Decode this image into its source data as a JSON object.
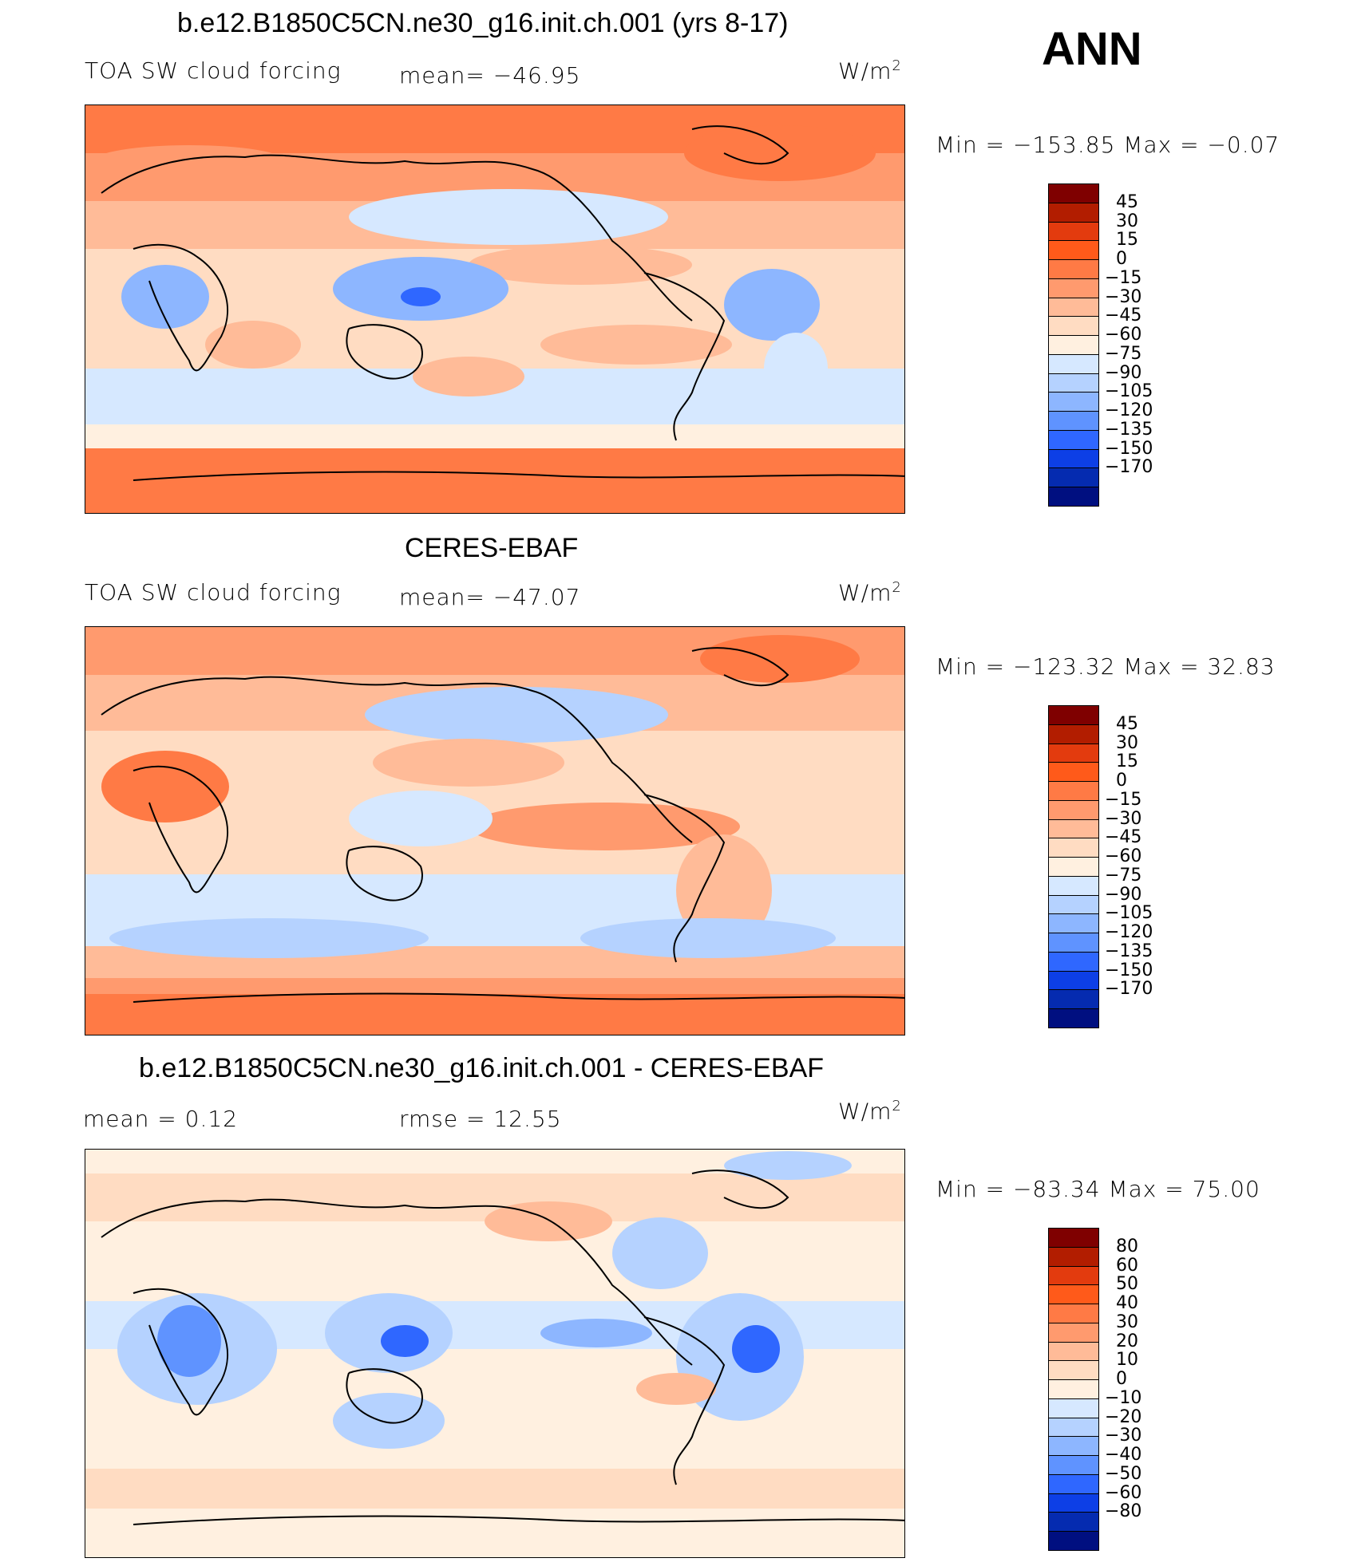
{
  "season": "ANN",
  "panels": [
    {
      "title": "b.e12.B1850C5CN.ne30_g16.init.ch.001 (yrs 8-17)",
      "variable": "TOA SW cloud forcing",
      "stat1": "mean=  −46.95",
      "stat2": "",
      "units": "W/m",
      "units_sup": "2",
      "minmax": "Min  =  −153.85  Max  =    −0.07",
      "levels": [
        "45",
        "30",
        "15",
        "0",
        "−15",
        "−30",
        "−45",
        "−60",
        "−75",
        "−90",
        "−105",
        "−120",
        "−135",
        "−150",
        "−170"
      ],
      "colors": [
        "#7f0000",
        "#b21d00",
        "#e33b0e",
        "#ff5a1a",
        "#ff7a45",
        "#ff9a6e",
        "#ffbb98",
        "#ffdcc2",
        "#fff0e0",
        "#d6e8ff",
        "#b5d2ff",
        "#8db6ff",
        "#5f93ff",
        "#2f67ff",
        "#0d3fe6",
        "#052bb0",
        "#000f80"
      ]
    },
    {
      "title": "CERES-EBAF",
      "variable": "TOA SW cloud forcing",
      "stat1": "mean=  −47.07",
      "stat2": "",
      "units": "W/m",
      "units_sup": "2",
      "minmax": "Min  =  −123.32  Max  =    32.83",
      "levels": [
        "45",
        "30",
        "15",
        "0",
        "−15",
        "−30",
        "−45",
        "−60",
        "−75",
        "−90",
        "−105",
        "−120",
        "−135",
        "−150",
        "−170"
      ],
      "colors": [
        "#7f0000",
        "#b21d00",
        "#e33b0e",
        "#ff5a1a",
        "#ff7a45",
        "#ff9a6e",
        "#ffbb98",
        "#ffdcc2",
        "#fff0e0",
        "#d6e8ff",
        "#b5d2ff",
        "#8db6ff",
        "#5f93ff",
        "#2f67ff",
        "#0d3fe6",
        "#052bb0",
        "#000f80"
      ]
    },
    {
      "title": "b.e12.B1850C5CN.ne30_g16.init.ch.001 - CERES-EBAF",
      "variable": "mean  =      0.12",
      "stat1": "rmse  =    12.55",
      "stat2": "",
      "units": "W/m",
      "units_sup": "2",
      "minmax": "Min  =  −83.34  Max  =    75.00",
      "levels": [
        "80",
        "60",
        "50",
        "40",
        "30",
        "20",
        "10",
        "0",
        "−10",
        "−20",
        "−30",
        "−40",
        "−50",
        "−60",
        "−80"
      ],
      "colors": [
        "#7f0000",
        "#b21d00",
        "#e33b0e",
        "#ff5a1a",
        "#ff7a45",
        "#ff9a6e",
        "#ffbb98",
        "#ffdcc2",
        "#fff0e0",
        "#d6e8ff",
        "#b5d2ff",
        "#8db6ff",
        "#5f93ff",
        "#2f67ff",
        "#0d3fe6",
        "#052bb0",
        "#000f80"
      ]
    }
  ]
}
